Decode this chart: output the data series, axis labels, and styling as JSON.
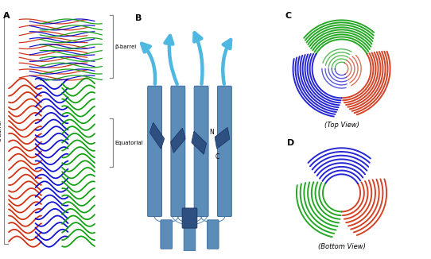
{
  "bg_color": "#ffffff",
  "blue_color": "#5b8db8",
  "blue_mid": "#4a7ab5",
  "dark_blue": "#2d5080",
  "arrow_color": "#4eb8e0",
  "bracket_color": "#888888",
  "red": "#cc2200",
  "green": "#009900",
  "blue3": "#0000cc",
  "panel_A_beta_barrel": "β-barrel",
  "panel_A_alpha_barrel": "α-barrel",
  "panel_A_equatorial": "Equatorial",
  "panel_B_N": "N",
  "panel_B_C": "C",
  "panel_C_label": "(Top View)",
  "panel_D_label": "(Bottom View)"
}
